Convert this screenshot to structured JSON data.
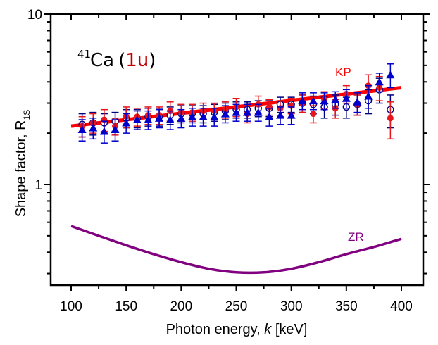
{
  "chart_data": {
    "type": "scatter",
    "title": "",
    "annotation": {
      "isotope_mass": "41",
      "element": "Ca",
      "open_paren": "(",
      "transition": "1u",
      "close_paren": ")"
    },
    "xlabel_prefix": "Photon energy, ",
    "xlabel_var": "k",
    "xlabel_suffix": " [keV]",
    "ylabel_main": "Shape factor, R",
    "ylabel_sub": "1S",
    "xlim": [
      80,
      425
    ],
    "ylim": [
      0.26,
      10
    ],
    "yscale": "log",
    "x_ticks": [
      100,
      150,
      200,
      250,
      300,
      350,
      400
    ],
    "x_tick_labels": [
      "100",
      "150",
      "200",
      "250",
      "300",
      "350",
      "400"
    ],
    "y_tick_labels": [
      {
        "value": 1,
        "label": "1"
      },
      {
        "value": 10,
        "label": "10"
      }
    ],
    "grid": false,
    "colors": {
      "kp": "#ff0000",
      "zr": "#800080",
      "red_points": "#e8161c",
      "blue_points": "#0000cc",
      "open_points": "#000080",
      "annotation_transition": "#c00000"
    },
    "curves": [
      {
        "name": "KP",
        "label": "KP",
        "x": [
          100,
          400
        ],
        "y": [
          2.2,
          3.7
        ]
      },
      {
        "name": "ZR",
        "label": "ZR",
        "x": [
          100,
          125,
          150,
          175,
          200,
          225,
          250,
          275,
          300,
          325,
          350,
          375,
          400
        ],
        "y": [
          0.57,
          0.5,
          0.44,
          0.39,
          0.35,
          0.32,
          0.305,
          0.305,
          0.32,
          0.35,
          0.39,
          0.43,
          0.48
        ]
      }
    ],
    "series": [
      {
        "name": "red filled circles",
        "marker": "circle-filled",
        "x": [
          110,
          120,
          130,
          140,
          150,
          160,
          170,
          180,
          190,
          200,
          210,
          220,
          230,
          240,
          250,
          260,
          270,
          280,
          290,
          300,
          310,
          320,
          330,
          340,
          350,
          360,
          370,
          380,
          390
        ],
        "y": [
          2.2,
          2.3,
          2.4,
          2.2,
          2.5,
          2.5,
          2.55,
          2.55,
          2.7,
          2.65,
          2.65,
          2.7,
          2.7,
          2.75,
          2.85,
          2.6,
          2.95,
          2.85,
          2.8,
          2.9,
          3.0,
          2.6,
          3.15,
          2.8,
          3.4,
          2.95,
          3.8,
          3.7,
          2.45
        ],
        "err": [
          0.3,
          0.3,
          0.35,
          0.25,
          0.35,
          0.3,
          0.3,
          0.3,
          0.35,
          0.3,
          0.3,
          0.3,
          0.3,
          0.3,
          0.35,
          0.3,
          0.35,
          0.3,
          0.3,
          0.3,
          0.35,
          0.3,
          0.35,
          0.35,
          0.4,
          0.4,
          0.6,
          0.6,
          0.6
        ]
      },
      {
        "name": "open circles",
        "marker": "circle-open",
        "x": [
          110,
          120,
          130,
          140,
          150,
          160,
          170,
          180,
          190,
          200,
          210,
          220,
          230,
          240,
          250,
          260,
          270,
          280,
          290,
          300,
          310,
          320,
          330,
          340,
          350,
          360,
          370,
          380,
          390
        ],
        "y": [
          2.25,
          2.3,
          2.3,
          2.35,
          2.45,
          2.45,
          2.5,
          2.5,
          2.55,
          2.6,
          2.6,
          2.6,
          2.65,
          2.7,
          2.75,
          2.75,
          2.8,
          2.8,
          2.95,
          2.95,
          3.0,
          2.95,
          2.85,
          2.95,
          2.85,
          2.95,
          3.1,
          3.6,
          2.75
        ],
        "err": [
          0.35,
          0.35,
          0.3,
          0.3,
          0.3,
          0.3,
          0.3,
          0.3,
          0.3,
          0.3,
          0.3,
          0.3,
          0.3,
          0.3,
          0.3,
          0.3,
          0.3,
          0.3,
          0.3,
          0.3,
          0.35,
          0.35,
          0.4,
          0.4,
          0.4,
          0.4,
          0.5,
          0.6,
          0.6
        ]
      },
      {
        "name": "blue triangles",
        "marker": "triangle-filled",
        "x": [
          110,
          120,
          130,
          140,
          150,
          160,
          170,
          180,
          190,
          200,
          210,
          220,
          230,
          240,
          250,
          260,
          270,
          280,
          290,
          300,
          310,
          320,
          330,
          340,
          350,
          360,
          370,
          380,
          390
        ],
        "y": [
          2.1,
          2.15,
          2.05,
          2.1,
          2.3,
          2.4,
          2.4,
          2.45,
          2.4,
          2.45,
          2.5,
          2.5,
          2.5,
          2.6,
          2.65,
          2.65,
          2.65,
          2.5,
          2.55,
          2.55,
          3.1,
          3.1,
          3.1,
          3.15,
          3.2,
          3.05,
          3.3,
          4.0,
          4.4
        ],
        "err": [
          0.3,
          0.3,
          0.3,
          0.3,
          0.3,
          0.3,
          0.3,
          0.3,
          0.3,
          0.3,
          0.3,
          0.3,
          0.3,
          0.3,
          0.3,
          0.3,
          0.3,
          0.3,
          0.3,
          0.3,
          0.35,
          0.35,
          0.35,
          0.35,
          0.4,
          0.4,
          0.5,
          0.5,
          0.7
        ]
      }
    ]
  }
}
